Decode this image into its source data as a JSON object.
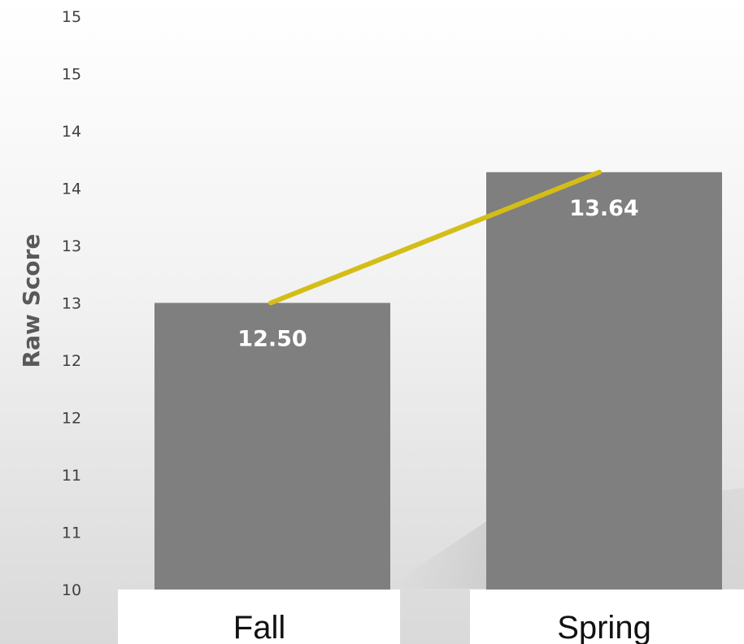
{
  "chart_data": {
    "type": "bar",
    "title": "",
    "xlabel": "",
    "ylabel": "Raw Score",
    "categories": [
      "Fall",
      "Spring"
    ],
    "values": [
      12.5,
      13.64
    ],
    "value_labels": [
      "12.50",
      "13.64"
    ],
    "ylim": [
      10,
      15
    ],
    "y_tick_labels": [
      "10",
      "11",
      "11",
      "12",
      "12",
      "13",
      "13",
      "14",
      "14",
      "15",
      "15"
    ],
    "trend_line": true,
    "grid": false,
    "colors": {
      "bar": "#7f7f7f",
      "trend": "#d4bd16",
      "category_band": "#ffffff",
      "background_top": "#ffffff",
      "background_bottom": "#d9d9d9"
    }
  }
}
